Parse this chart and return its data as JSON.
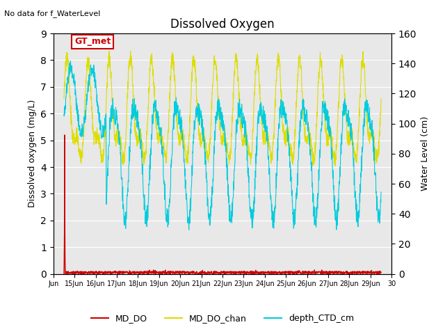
{
  "title": "Dissolved Oxygen",
  "top_left_text": "No data for f_WaterLevel",
  "ylabel_left": "Dissolved oxygen (mg/L)",
  "ylabel_right": "Water Level (cm)",
  "ylim_left": [
    0,
    9.0
  ],
  "ylim_right": [
    0,
    160
  ],
  "yticks_left": [
    0.0,
    1.0,
    2.0,
    3.0,
    4.0,
    5.0,
    6.0,
    7.0,
    8.0,
    9.0
  ],
  "yticks_right": [
    0,
    20,
    40,
    60,
    80,
    100,
    120,
    140,
    160
  ],
  "xlabel_ticks": [
    "Jun",
    "15Jun",
    "16Jun",
    "17Jun",
    "18Jun",
    "19Jun",
    "20Jun",
    "21Jun",
    "22Jun",
    "23Jun",
    "24Jun",
    "25Jun",
    "26Jun",
    "27Jun",
    "28Jun",
    "29Jun",
    "30"
  ],
  "legend_labels": [
    "MD_DO",
    "MD_DO_chan",
    "depth_CTD_cm"
  ],
  "legend_colors": [
    "#cc0000",
    "#dddd00",
    "#00ccdd"
  ],
  "box_label": "GT_met",
  "box_color": "#cc0000",
  "background_color": "#e8e8e8",
  "fig_background": "#ffffff",
  "grid_color": "#ffffff"
}
